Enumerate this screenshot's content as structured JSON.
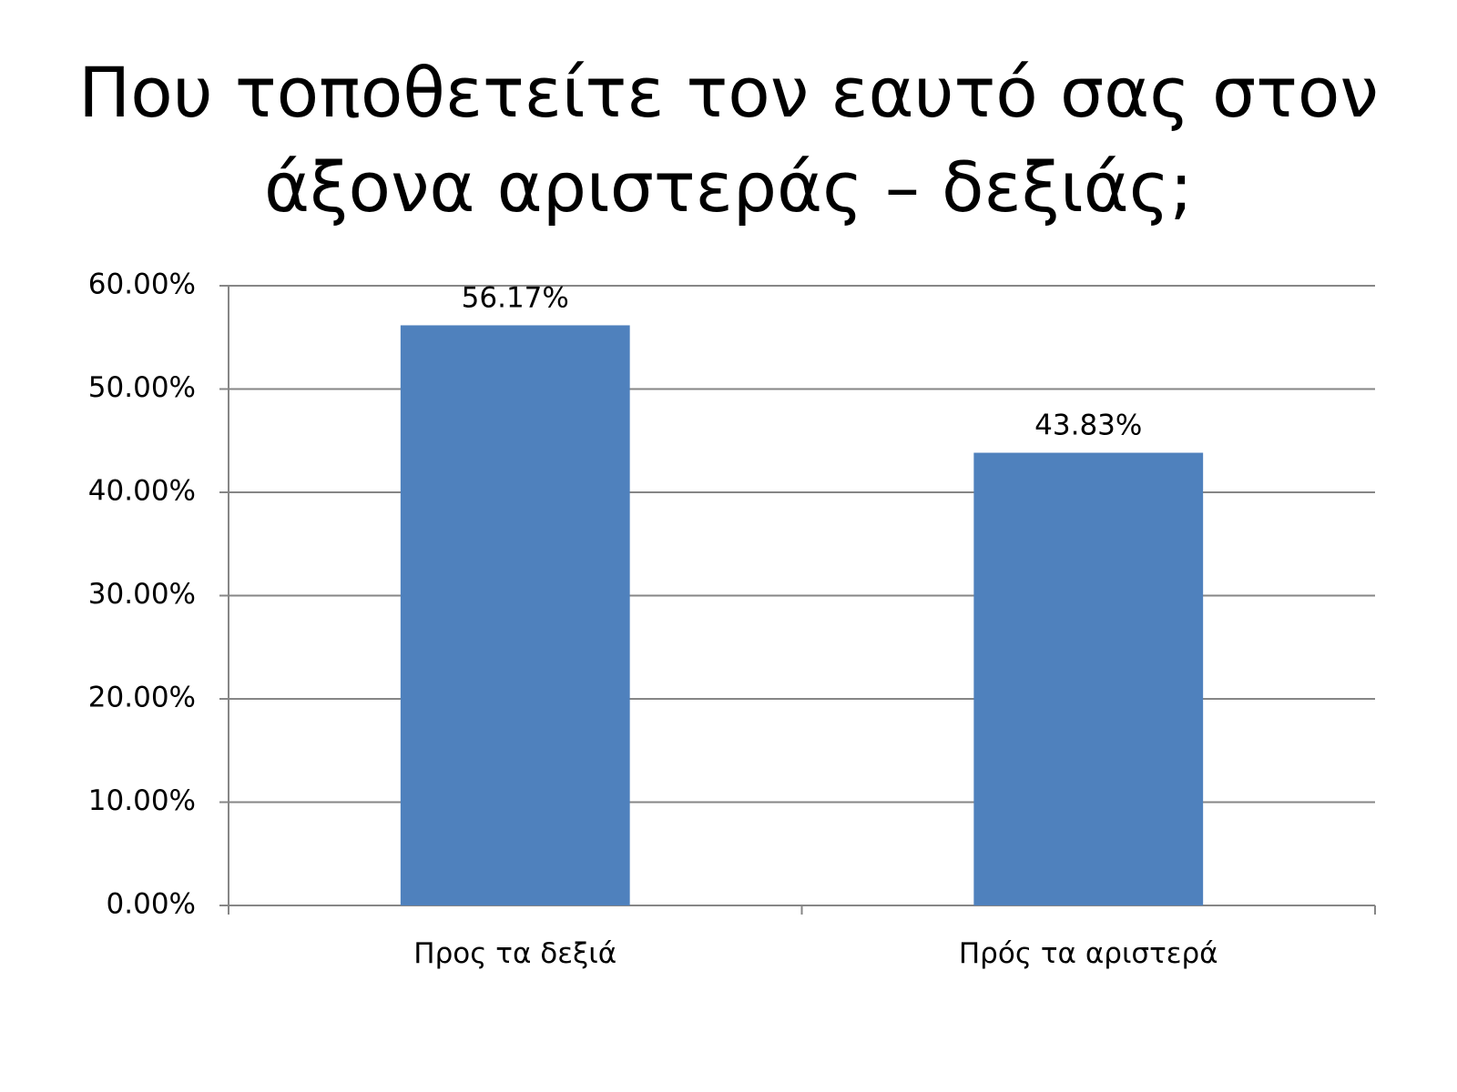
{
  "chart_data": {
    "type": "bar",
    "title": [
      "Που τοποθετείτε τον εαυτό σας στον",
      "άξονα αριστεράς – δεξιάς;"
    ],
    "categories": [
      "Προς τα δεξιά",
      "Πρός τα αριστερά"
    ],
    "values": [
      56.17,
      43.83
    ],
    "value_labels": [
      "56.17%",
      "43.83%"
    ],
    "color": "#4f81bd",
    "ylim": [
      0,
      60
    ],
    "yticks": [
      {
        "value": 0,
        "label": "0.00%"
      },
      {
        "value": 10,
        "label": "10.00%"
      },
      {
        "value": 20,
        "label": "20.00%"
      },
      {
        "value": 30,
        "label": "30.00%"
      },
      {
        "value": 40,
        "label": "40.00%"
      },
      {
        "value": 50,
        "label": "50.00%"
      },
      {
        "value": 60,
        "label": "60.00%"
      }
    ],
    "grid": true
  }
}
